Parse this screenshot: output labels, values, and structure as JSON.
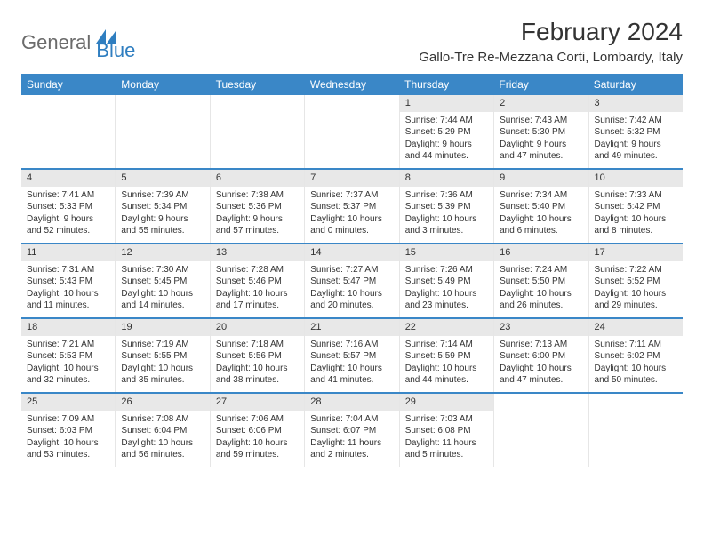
{
  "logo": {
    "textA": "General",
    "textB": "Blue"
  },
  "title": "February 2024",
  "location": "Gallo-Tre Re-Mezzana Corti, Lombardy, Italy",
  "colors": {
    "accent": "#3a87c7",
    "header_bg": "#3a87c7",
    "daynum_bg": "#e8e8e8",
    "border": "#e6e6e6",
    "text": "#333333",
    "logo_gray": "#6b6b6b",
    "logo_blue": "#2f7ec0",
    "background": "#ffffff"
  },
  "day_names": [
    "Sunday",
    "Monday",
    "Tuesday",
    "Wednesday",
    "Thursday",
    "Friday",
    "Saturday"
  ],
  "weeks": [
    [
      {
        "n": "",
        "sr": "",
        "ss": "",
        "dl": ""
      },
      {
        "n": "",
        "sr": "",
        "ss": "",
        "dl": ""
      },
      {
        "n": "",
        "sr": "",
        "ss": "",
        "dl": ""
      },
      {
        "n": "",
        "sr": "",
        "ss": "",
        "dl": ""
      },
      {
        "n": "1",
        "sr": "Sunrise: 7:44 AM",
        "ss": "Sunset: 5:29 PM",
        "dl": "Daylight: 9 hours and 44 minutes."
      },
      {
        "n": "2",
        "sr": "Sunrise: 7:43 AM",
        "ss": "Sunset: 5:30 PM",
        "dl": "Daylight: 9 hours and 47 minutes."
      },
      {
        "n": "3",
        "sr": "Sunrise: 7:42 AM",
        "ss": "Sunset: 5:32 PM",
        "dl": "Daylight: 9 hours and 49 minutes."
      }
    ],
    [
      {
        "n": "4",
        "sr": "Sunrise: 7:41 AM",
        "ss": "Sunset: 5:33 PM",
        "dl": "Daylight: 9 hours and 52 minutes."
      },
      {
        "n": "5",
        "sr": "Sunrise: 7:39 AM",
        "ss": "Sunset: 5:34 PM",
        "dl": "Daylight: 9 hours and 55 minutes."
      },
      {
        "n": "6",
        "sr": "Sunrise: 7:38 AM",
        "ss": "Sunset: 5:36 PM",
        "dl": "Daylight: 9 hours and 57 minutes."
      },
      {
        "n": "7",
        "sr": "Sunrise: 7:37 AM",
        "ss": "Sunset: 5:37 PM",
        "dl": "Daylight: 10 hours and 0 minutes."
      },
      {
        "n": "8",
        "sr": "Sunrise: 7:36 AM",
        "ss": "Sunset: 5:39 PM",
        "dl": "Daylight: 10 hours and 3 minutes."
      },
      {
        "n": "9",
        "sr": "Sunrise: 7:34 AM",
        "ss": "Sunset: 5:40 PM",
        "dl": "Daylight: 10 hours and 6 minutes."
      },
      {
        "n": "10",
        "sr": "Sunrise: 7:33 AM",
        "ss": "Sunset: 5:42 PM",
        "dl": "Daylight: 10 hours and 8 minutes."
      }
    ],
    [
      {
        "n": "11",
        "sr": "Sunrise: 7:31 AM",
        "ss": "Sunset: 5:43 PM",
        "dl": "Daylight: 10 hours and 11 minutes."
      },
      {
        "n": "12",
        "sr": "Sunrise: 7:30 AM",
        "ss": "Sunset: 5:45 PM",
        "dl": "Daylight: 10 hours and 14 minutes."
      },
      {
        "n": "13",
        "sr": "Sunrise: 7:28 AM",
        "ss": "Sunset: 5:46 PM",
        "dl": "Daylight: 10 hours and 17 minutes."
      },
      {
        "n": "14",
        "sr": "Sunrise: 7:27 AM",
        "ss": "Sunset: 5:47 PM",
        "dl": "Daylight: 10 hours and 20 minutes."
      },
      {
        "n": "15",
        "sr": "Sunrise: 7:26 AM",
        "ss": "Sunset: 5:49 PM",
        "dl": "Daylight: 10 hours and 23 minutes."
      },
      {
        "n": "16",
        "sr": "Sunrise: 7:24 AM",
        "ss": "Sunset: 5:50 PM",
        "dl": "Daylight: 10 hours and 26 minutes."
      },
      {
        "n": "17",
        "sr": "Sunrise: 7:22 AM",
        "ss": "Sunset: 5:52 PM",
        "dl": "Daylight: 10 hours and 29 minutes."
      }
    ],
    [
      {
        "n": "18",
        "sr": "Sunrise: 7:21 AM",
        "ss": "Sunset: 5:53 PM",
        "dl": "Daylight: 10 hours and 32 minutes."
      },
      {
        "n": "19",
        "sr": "Sunrise: 7:19 AM",
        "ss": "Sunset: 5:55 PM",
        "dl": "Daylight: 10 hours and 35 minutes."
      },
      {
        "n": "20",
        "sr": "Sunrise: 7:18 AM",
        "ss": "Sunset: 5:56 PM",
        "dl": "Daylight: 10 hours and 38 minutes."
      },
      {
        "n": "21",
        "sr": "Sunrise: 7:16 AM",
        "ss": "Sunset: 5:57 PM",
        "dl": "Daylight: 10 hours and 41 minutes."
      },
      {
        "n": "22",
        "sr": "Sunrise: 7:14 AM",
        "ss": "Sunset: 5:59 PM",
        "dl": "Daylight: 10 hours and 44 minutes."
      },
      {
        "n": "23",
        "sr": "Sunrise: 7:13 AM",
        "ss": "Sunset: 6:00 PM",
        "dl": "Daylight: 10 hours and 47 minutes."
      },
      {
        "n": "24",
        "sr": "Sunrise: 7:11 AM",
        "ss": "Sunset: 6:02 PM",
        "dl": "Daylight: 10 hours and 50 minutes."
      }
    ],
    [
      {
        "n": "25",
        "sr": "Sunrise: 7:09 AM",
        "ss": "Sunset: 6:03 PM",
        "dl": "Daylight: 10 hours and 53 minutes."
      },
      {
        "n": "26",
        "sr": "Sunrise: 7:08 AM",
        "ss": "Sunset: 6:04 PM",
        "dl": "Daylight: 10 hours and 56 minutes."
      },
      {
        "n": "27",
        "sr": "Sunrise: 7:06 AM",
        "ss": "Sunset: 6:06 PM",
        "dl": "Daylight: 10 hours and 59 minutes."
      },
      {
        "n": "28",
        "sr": "Sunrise: 7:04 AM",
        "ss": "Sunset: 6:07 PM",
        "dl": "Daylight: 11 hours and 2 minutes."
      },
      {
        "n": "29",
        "sr": "Sunrise: 7:03 AM",
        "ss": "Sunset: 6:08 PM",
        "dl": "Daylight: 11 hours and 5 minutes."
      },
      {
        "n": "",
        "sr": "",
        "ss": "",
        "dl": ""
      },
      {
        "n": "",
        "sr": "",
        "ss": "",
        "dl": ""
      }
    ]
  ]
}
